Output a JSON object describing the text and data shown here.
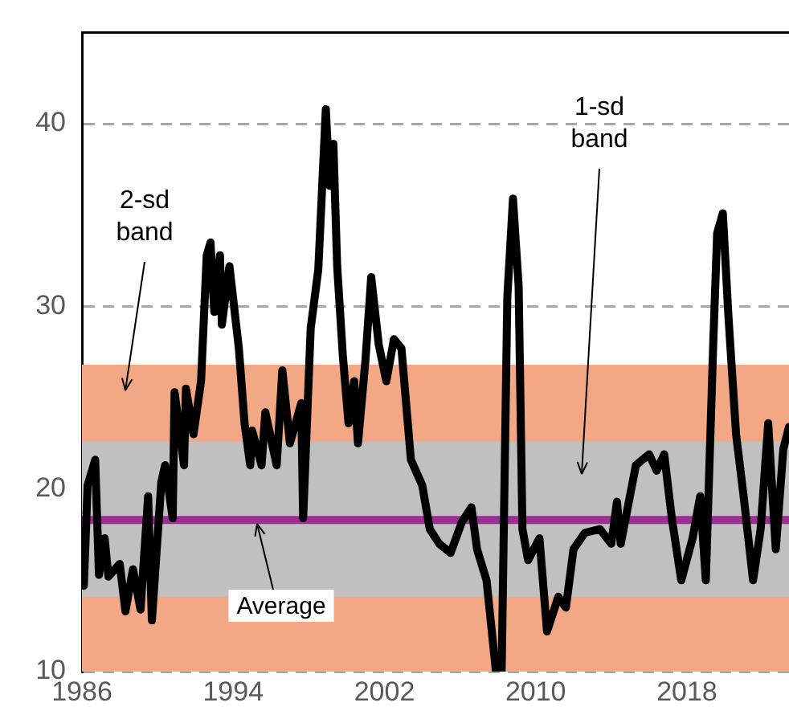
{
  "chart_data": {
    "type": "line",
    "x": [
      1986.1,
      1986.3,
      1986.7,
      1986.9,
      1987.2,
      1987.4,
      1988.0,
      1988.3,
      1988.7,
      1989.1,
      1989.5,
      1989.7,
      1990.2,
      1990.4,
      1990.8,
      1990.9,
      1991.4,
      1991.5,
      1991.9,
      1992.3,
      1992.6,
      1992.8,
      1993.0,
      1993.3,
      1993.4,
      1993.8,
      1994.3,
      1994.6,
      1994.9,
      1995.0,
      1995.5,
      1995.7,
      1996.3,
      1996.6,
      1997.0,
      1997.6,
      1997.7,
      1998.1,
      1998.5,
      1998.9,
      1999.1,
      1999.3,
      1999.5,
      1999.8,
      2000.1,
      2000.4,
      2000.6,
      2001.0,
      2001.3,
      2001.7,
      2002.1,
      2002.5,
      2002.9,
      2003.4,
      2004.0,
      2004.4,
      2004.9,
      2005.5,
      2006.1,
      2006.6,
      2006.9,
      2007.4,
      2007.9,
      2008.2,
      2008.5,
      2008.8,
      2009.1,
      2009.3,
      2009.6,
      2010.2,
      2010.6,
      2011.2,
      2011.6,
      2012.0,
      2012.6,
      2013.4,
      2014.0,
      2014.3,
      2014.5,
      2015.3,
      2016.0,
      2016.4,
      2016.8,
      2017.2,
      2017.7,
      2018.3,
      2018.7,
      2019.0,
      2019.4,
      2019.6,
      2019.9,
      2020.2,
      2020.6,
      2021.0,
      2021.5,
      2021.9,
      2022.3,
      2022.7,
      2023.1,
      2023.4
    ],
    "series": [
      {
        "color": "#000000",
        "values": [
          14.7,
          20.2,
          21.6,
          15.3,
          17.3,
          15.2,
          15.9,
          13.3,
          15.6,
          13.4,
          19.6,
          12.8,
          20.4,
          21.3,
          18.4,
          25.3,
          21.3,
          25.5,
          23.0,
          25.9,
          32.8,
          33.5,
          29.7,
          32.8,
          29.0,
          32.2,
          27.7,
          23.6,
          21.3,
          23.2,
          21.3,
          24.2,
          21.3,
          26.5,
          22.5,
          24.7,
          18.4,
          28.8,
          32.0,
          40.8,
          36.6,
          38.9,
          32.2,
          27.3,
          23.6,
          25.9,
          22.5,
          27.1,
          31.6,
          27.9,
          25.9,
          28.2,
          27.7,
          21.6,
          20.2,
          17.8,
          17.0,
          16.5,
          18.2,
          19.0,
          16.7,
          15.0,
          10.0,
          10.0,
          30.5,
          35.9,
          31.1,
          17.8,
          16.1,
          17.3,
          12.2,
          14.1,
          13.5,
          16.7,
          17.6,
          17.8,
          17.0,
          19.3,
          17.0,
          21.3,
          21.9,
          21.0,
          21.9,
          18.4,
          15.0,
          17.3,
          19.6,
          15.0,
          28.2,
          34.0,
          35.1,
          29.4,
          23.0,
          19.6,
          15.0,
          17.8,
          23.6,
          16.7,
          22.2,
          23.4
        ]
      }
    ],
    "xlim": [
      1986,
      2023.4
    ],
    "xticks": [
      1986,
      1994,
      2002,
      2010,
      2018
    ],
    "ylim": [
      10,
      45
    ],
    "yticks": [
      10,
      20,
      30,
      40
    ],
    "grid": "y",
    "line_style": "solid",
    "marker": "none",
    "legend": false,
    "bands": [
      {
        "axis": "y",
        "from": 10,
        "to": 26.8,
        "label": "2-sd band",
        "color": "#f2a884"
      },
      {
        "axis": "y",
        "from": 14.1,
        "to": 22.6,
        "label": "1-sd band",
        "color": "#c0c0c0"
      }
    ],
    "ref_lines": [
      {
        "axis": "y",
        "value": 18.3,
        "label": "Average",
        "color": "#9b2f96"
      }
    ]
  }
}
